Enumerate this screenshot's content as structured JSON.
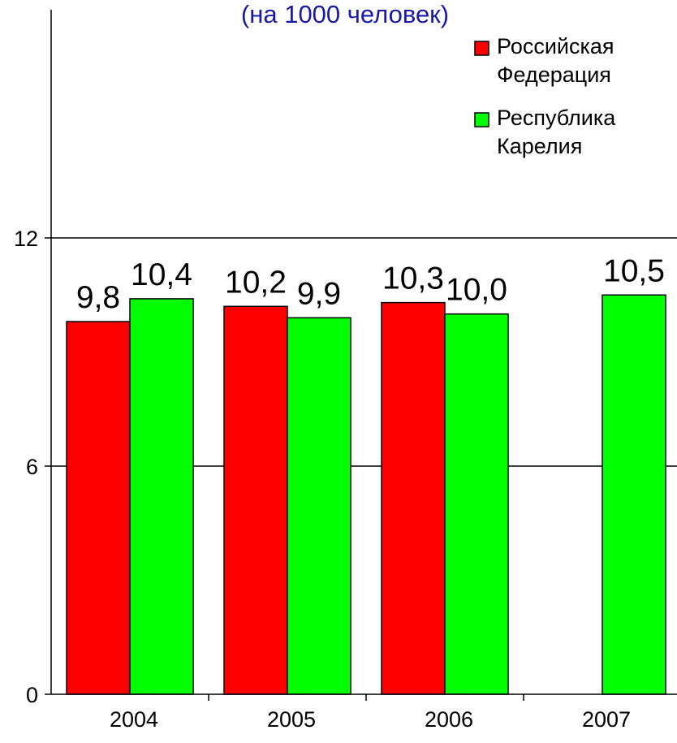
{
  "chart_data": {
    "type": "bar",
    "title": "(на 1000 человек)",
    "title_color": "#1a1aa6",
    "categories": [
      "2004",
      "2005",
      "2006",
      "2007"
    ],
    "series": [
      {
        "name": "Российская Федерация",
        "color": "#ff0000",
        "values": [
          9.8,
          10.2,
          10.3,
          null
        ],
        "labels": [
          "9,8",
          "10,2",
          "10,3",
          ""
        ]
      },
      {
        "name": "Республика Карелия",
        "color": "#00ff00",
        "values": [
          10.4,
          9.9,
          10.0,
          10.5
        ],
        "labels": [
          "10,4",
          "9,9",
          "10,0",
          "10,5"
        ]
      }
    ],
    "ylim": [
      0,
      18
    ],
    "yticks": [
      0,
      6,
      12
    ],
    "ytick_labels": [
      "0",
      "6",
      "12"
    ],
    "xlabel": "",
    "ylabel": "",
    "grid": true,
    "legend_position": "top-right"
  }
}
